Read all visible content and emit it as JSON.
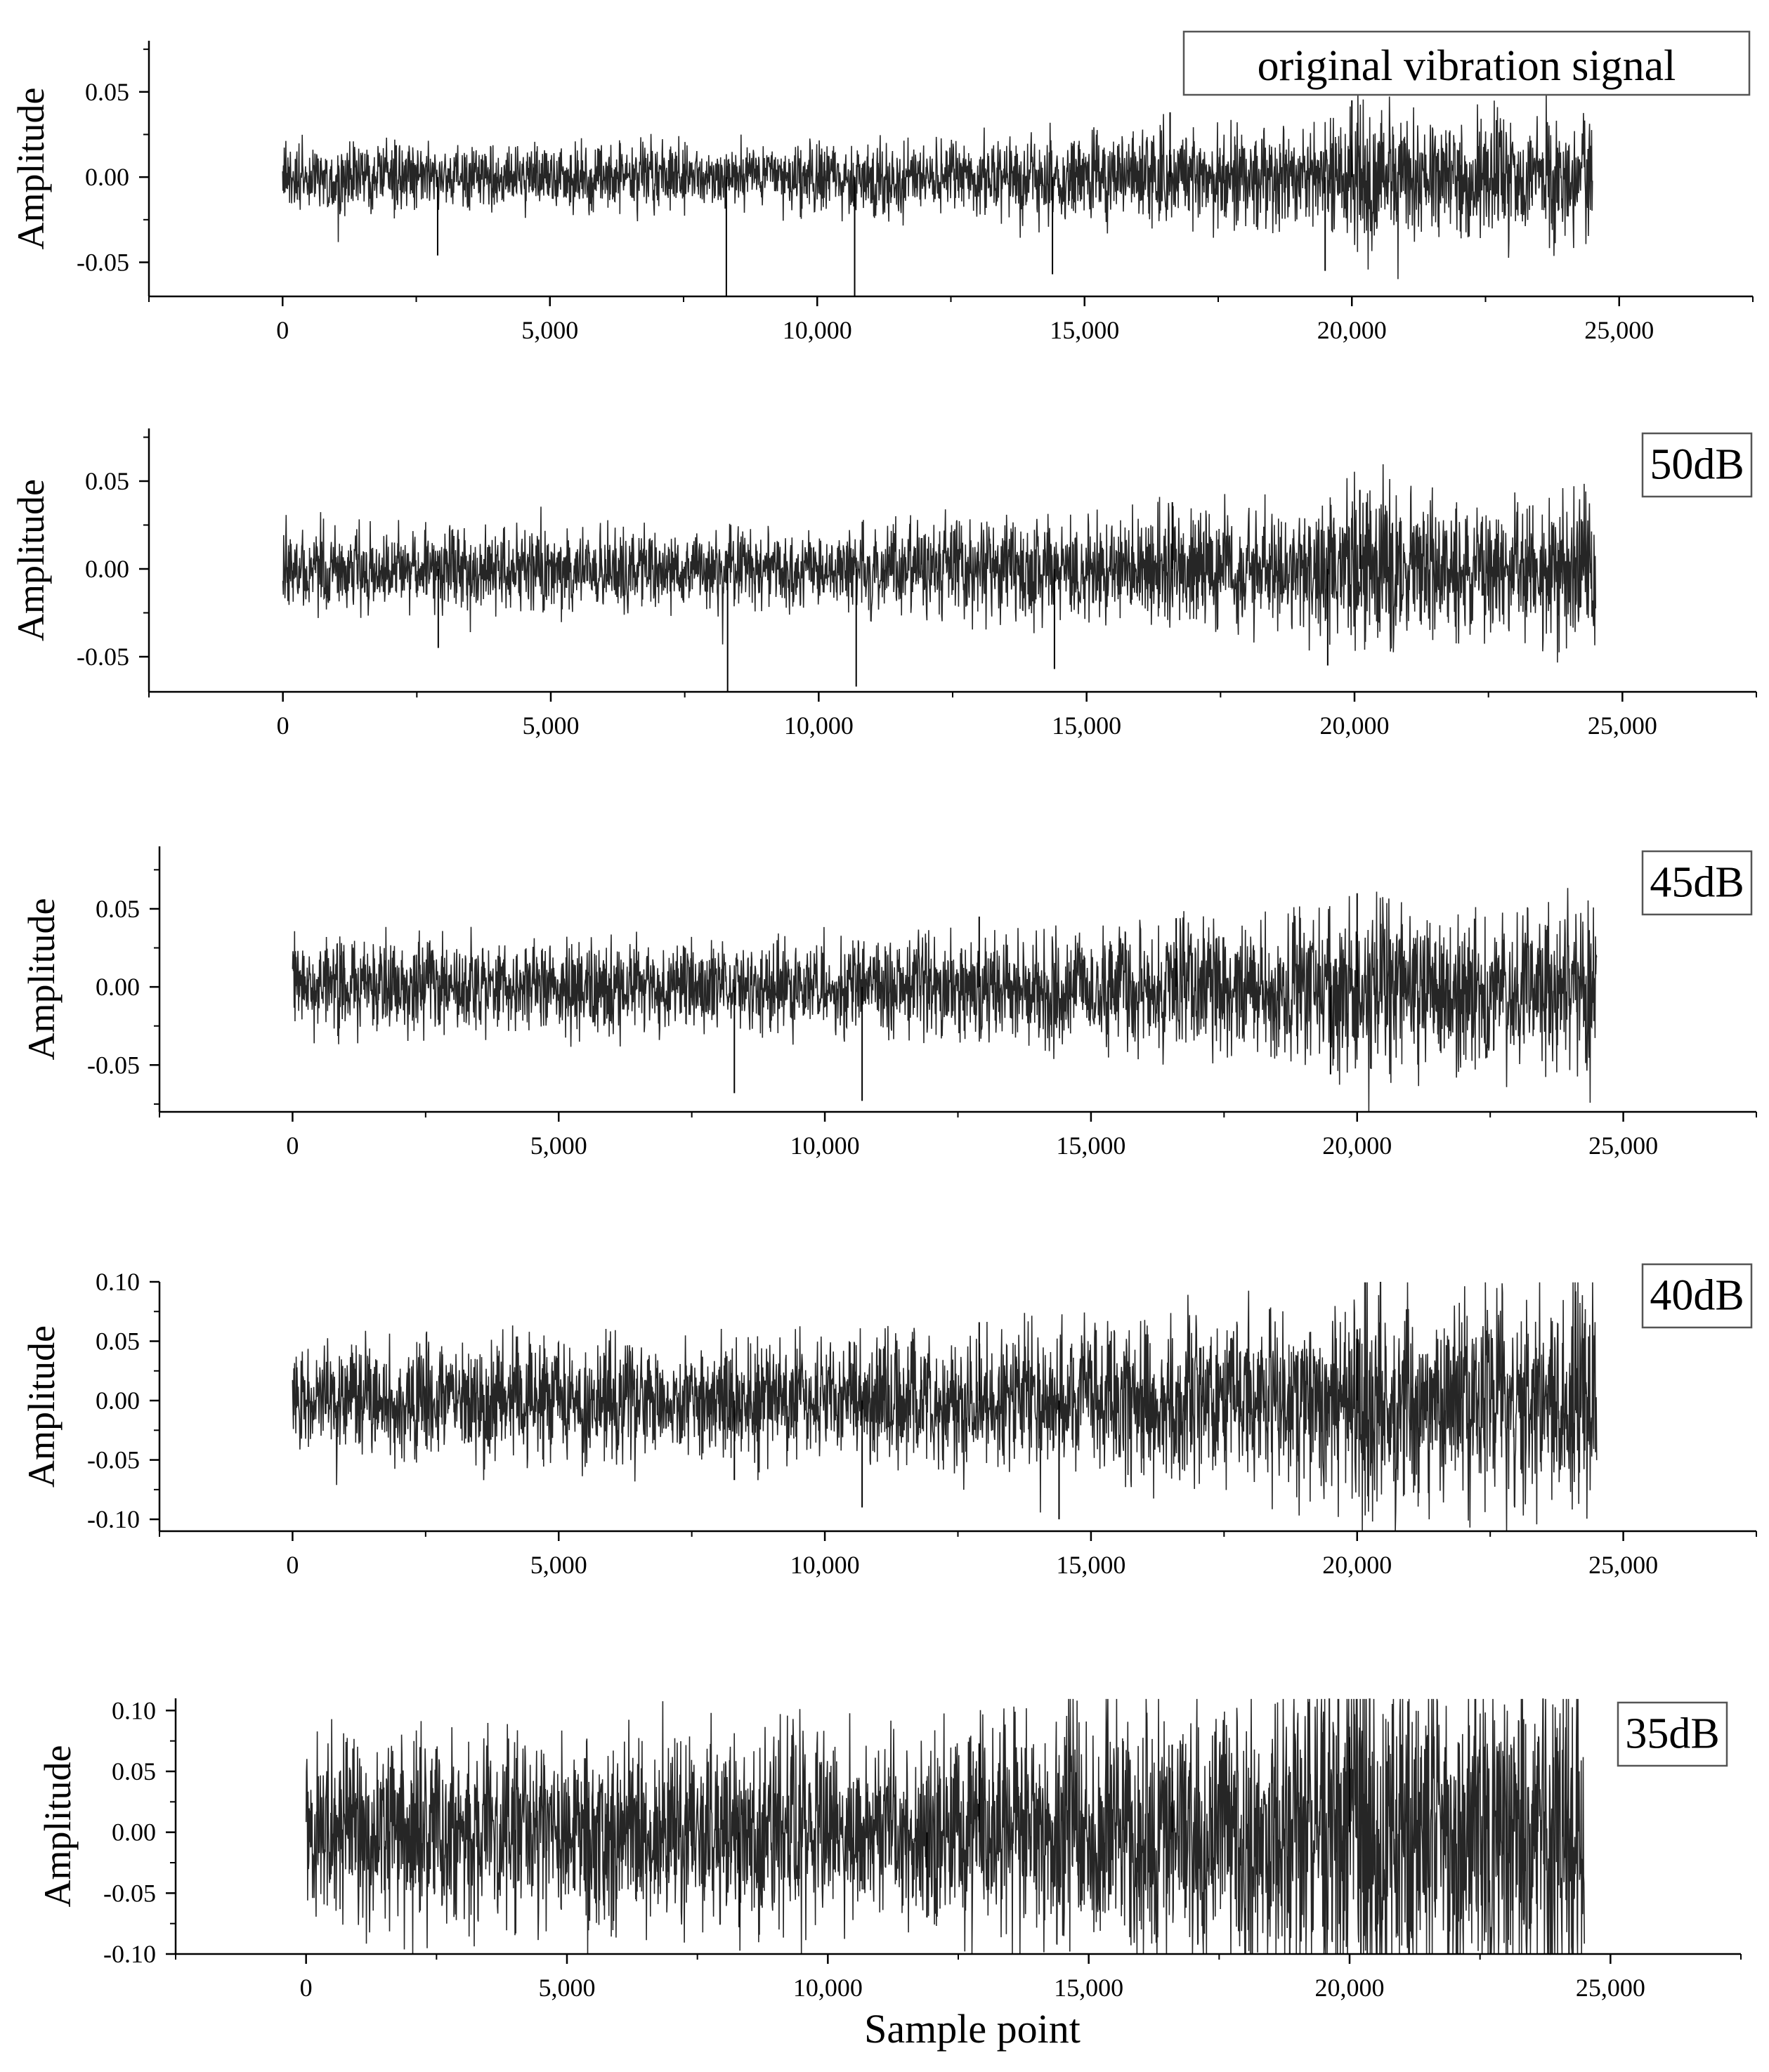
{
  "chart_data": [
    {
      "type": "line",
      "ylabel": "Amplitude",
      "xlabel": "",
      "badge": "original vibration signal",
      "xlim": [
        -2500,
        27500
      ],
      "ylim": [
        -0.07,
        0.08
      ],
      "xticks": [
        0,
        5000,
        10000,
        15000,
        20000,
        25000
      ],
      "xtick_labels": [
        "0",
        "5,000",
        "10,000",
        "15,000",
        "20,000",
        "25,000"
      ],
      "yticks": [
        -0.05,
        0.0,
        0.05
      ],
      "ytick_labels": [
        "-0.05",
        "0.00",
        "0.05"
      ],
      "x_range": [
        0,
        24500
      ],
      "base_noise": 0.006,
      "spikes": [
        [
          8300,
          -0.07
        ],
        [
          10700,
          -0.07
        ],
        [
          14400,
          -0.057
        ],
        [
          20000,
          0.045
        ],
        [
          19500,
          -0.055
        ],
        [
          16600,
          0.038
        ],
        [
          2900,
          -0.046
        ]
      ],
      "series_color": "#000000"
    },
    {
      "type": "line",
      "ylabel": "Amplitude",
      "xlabel": "",
      "badge": "50dB",
      "xlim": [
        -2500,
        27500
      ],
      "ylim": [
        -0.07,
        0.08
      ],
      "xticks": [
        0,
        5000,
        10000,
        15000,
        20000,
        25000
      ],
      "xtick_labels": [
        "0",
        "5,000",
        "10,000",
        "15,000",
        "20,000",
        "25,000"
      ],
      "yticks": [
        -0.05,
        0.0,
        0.05
      ],
      "ytick_labels": [
        "-0.05",
        "0.00",
        "0.05"
      ],
      "x_range": [
        0,
        24500
      ],
      "base_noise": 0.007,
      "spikes": [
        [
          8300,
          -0.07
        ],
        [
          10700,
          -0.067
        ],
        [
          14400,
          -0.057
        ],
        [
          20100,
          0.045
        ],
        [
          19500,
          -0.055
        ],
        [
          16600,
          0.038
        ],
        [
          2900,
          -0.045
        ]
      ],
      "series_color": "#000000"
    },
    {
      "type": "line",
      "ylabel": "Amplitude",
      "xlabel": "",
      "badge": "45dB",
      "xlim": [
        -2500,
        27500
      ],
      "ylim": [
        -0.08,
        0.09
      ],
      "xticks": [
        0,
        5000,
        10000,
        15000,
        20000,
        25000
      ],
      "xtick_labels": [
        "0",
        "5,000",
        "10,000",
        "15,000",
        "20,000",
        "25,000"
      ],
      "yticks": [
        -0.05,
        0.0,
        0.05
      ],
      "ytick_labels": [
        "-0.05",
        "0.00",
        "0.05"
      ],
      "x_range": [
        0,
        24500
      ],
      "base_noise": 0.009,
      "spikes": [
        [
          8300,
          -0.068
        ],
        [
          10700,
          -0.073
        ],
        [
          20000,
          0.06
        ],
        [
          16600,
          0.044
        ],
        [
          19500,
          -0.056
        ],
        [
          12900,
          0.045
        ]
      ],
      "series_color": "#000000"
    },
    {
      "type": "line",
      "ylabel": "Amplitude",
      "xlabel": "",
      "badge": "40dB",
      "xlim": [
        -2500,
        27500
      ],
      "ylim": [
        -0.11,
        0.1
      ],
      "xticks": [
        0,
        5000,
        10000,
        15000,
        20000,
        25000
      ],
      "xtick_labels": [
        "0",
        "5,000",
        "10,000",
        "15,000",
        "20,000",
        "25,000"
      ],
      "yticks": [
        -0.1,
        -0.05,
        0.0,
        0.05,
        0.1
      ],
      "ytick_labels": [
        "-0.10",
        "-0.05",
        "0.00",
        "0.05",
        "0.10"
      ],
      "x_range": [
        0,
        24500
      ],
      "base_noise": 0.015,
      "spikes": [
        [
          14400,
          -0.1
        ],
        [
          10700,
          -0.09
        ],
        [
          12900,
          0.066
        ],
        [
          20000,
          0.06
        ],
        [
          8300,
          -0.067
        ]
      ],
      "series_color": "#000000"
    },
    {
      "type": "line",
      "ylabel": "Amplitude",
      "xlabel": "Sample point",
      "badge": "35dB",
      "xlim": [
        -2500,
        27500
      ],
      "ylim": [
        -0.1,
        0.11
      ],
      "xticks": [
        0,
        5000,
        10000,
        15000,
        20000,
        25000
      ],
      "xtick_labels": [
        "0",
        "5,000",
        "10,000",
        "15,000",
        "20,000",
        "25,000"
      ],
      "yticks": [
        -0.1,
        -0.05,
        0.0,
        0.05,
        0.1
      ],
      "ytick_labels": [
        "-0.10",
        "-0.05",
        "0.00",
        "0.05",
        "0.10"
      ],
      "x_range": [
        0,
        24500
      ],
      "base_noise": 0.024,
      "spikes": [
        [
          8300,
          -0.078
        ],
        [
          20000,
          0.078
        ],
        [
          16600,
          0.072
        ],
        [
          12900,
          0.073
        ],
        [
          11900,
          -0.07
        ]
      ],
      "series_color": "#000000"
    }
  ]
}
